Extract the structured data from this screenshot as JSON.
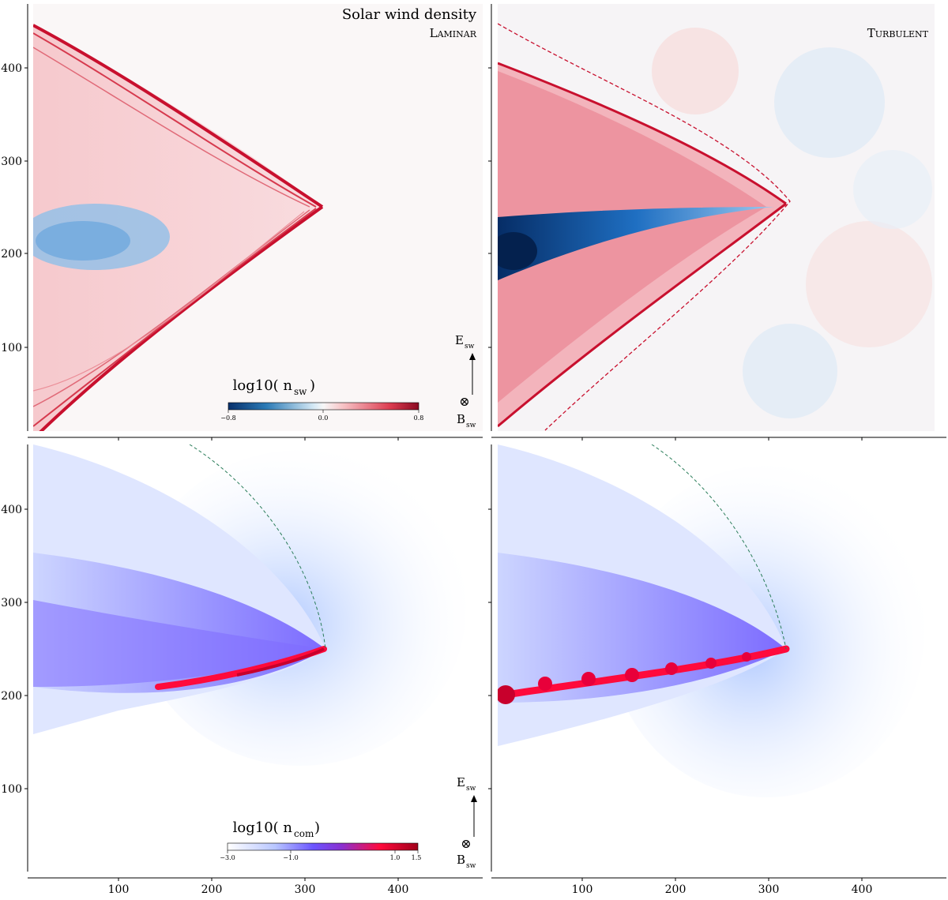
{
  "figure": {
    "top_title": "Solar wind density",
    "panel_labels": {
      "top_left": "Laminar",
      "top_right": "Turbulent"
    },
    "axes": {
      "y_ticks": [
        "400",
        "300",
        "200",
        "100"
      ],
      "x_ticks": [
        "100",
        "200",
        "300",
        "400"
      ]
    },
    "colorbars": {
      "top": {
        "label_prefix": "log10( n",
        "label_sub": "sw",
        "label_suffix": " )",
        "ticks": [
          "−0.8",
          "0.0",
          "0.8"
        ]
      },
      "bottom": {
        "label_prefix": "log10( n",
        "label_sub": "com",
        "label_suffix": " )",
        "ticks": [
          "−3.0",
          "−1.0",
          "1.0",
          "1.5"
        ]
      }
    },
    "vectors": {
      "e_label": "E",
      "e_sub": "sw",
      "b_label": "B",
      "b_sub": "sw",
      "b_symbol": "⊗"
    },
    "colors": {
      "red": "#c8102e",
      "pink": "#f2b8c0",
      "blue_light": "#9ec9ec",
      "blue_dark": "#0a3f8a",
      "purple": "#6b55ff",
      "magenta": "#ff0a3c",
      "green_dash": "#2a7d5a"
    }
  }
}
